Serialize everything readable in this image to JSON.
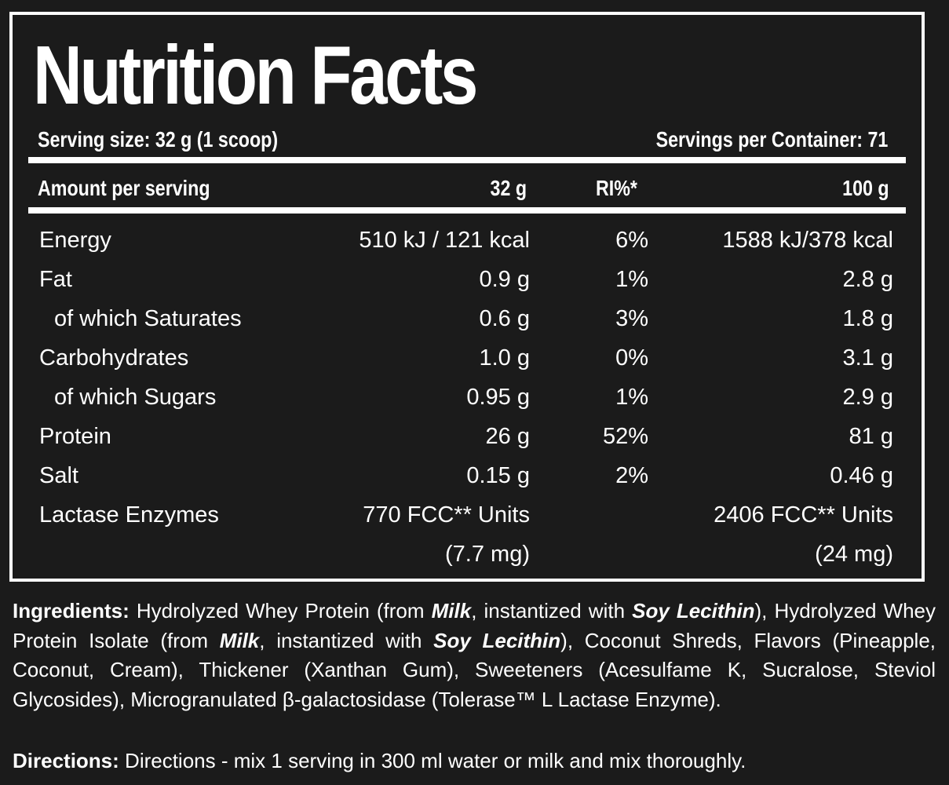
{
  "label": {
    "title": "Nutrition Facts",
    "serving_size": "Serving size: 32 g (1 scoop)",
    "servings_per_container": "Servings per Container: 71"
  },
  "table": {
    "columns": [
      "Amount per serving",
      "32 g",
      "RI%*",
      "100 g"
    ],
    "rows": [
      {
        "nutrient": "Energy",
        "per_serving": "510 kJ / 121 kcal",
        "ri": "6%",
        "per_100g": "1588 kJ/378 kcal"
      },
      {
        "nutrient": "Fat",
        "per_serving": "0.9 g",
        "ri": "1%",
        "per_100g": "2.8 g"
      },
      {
        "nutrient": "of which Saturates",
        "per_serving": "0.6 g",
        "ri": "3%",
        "per_100g": "1.8 g"
      },
      {
        "nutrient": "Carbohydrates",
        "per_serving": "1.0 g",
        "ri": "0%",
        "per_100g": "3.1 g"
      },
      {
        "nutrient": "of which Sugars",
        "per_serving": "0.95 g",
        "ri": "1%",
        "per_100g": "2.9 g"
      },
      {
        "nutrient": "Protein",
        "per_serving": "26 g",
        "ri": "52%",
        "per_100g": "81 g"
      },
      {
        "nutrient": "Salt",
        "per_serving": "0.15 g",
        "ri": "2%",
        "per_100g": "0.46 g"
      },
      {
        "nutrient": "Lactase Enzymes",
        "per_serving": "770 FCC** Units",
        "ri": "",
        "per_100g": "2406 FCC** Units"
      },
      {
        "nutrient": "",
        "per_serving": "(7.7 mg)",
        "ri": "",
        "per_100g": "(24 mg)"
      }
    ]
  },
  "ingredients": {
    "heading": "Ingredients:",
    "t1": " Hydrolyzed Whey Protein (from ",
    "milk": "Milk",
    "t2": ", instantized with ",
    "soy": "Soy Lecithin",
    "t3": "), Hydrolyzed Whey Protein Isolate (from ",
    "t4": "), Coconut Shreds, Flavors (Pineapple, Coconut, Cream), Thickener (Xanthan Gum), Sweeteners (Acesulfame K, Sucralose, Steviol Glycosides), Microgranulated β-galactosidase (Tolerase™ L Lactase Enzyme)."
  },
  "directions": {
    "heading": "Directions:",
    "text": " Directions - mix 1 serving in 300 ml water or milk and mix thoroughly."
  }
}
